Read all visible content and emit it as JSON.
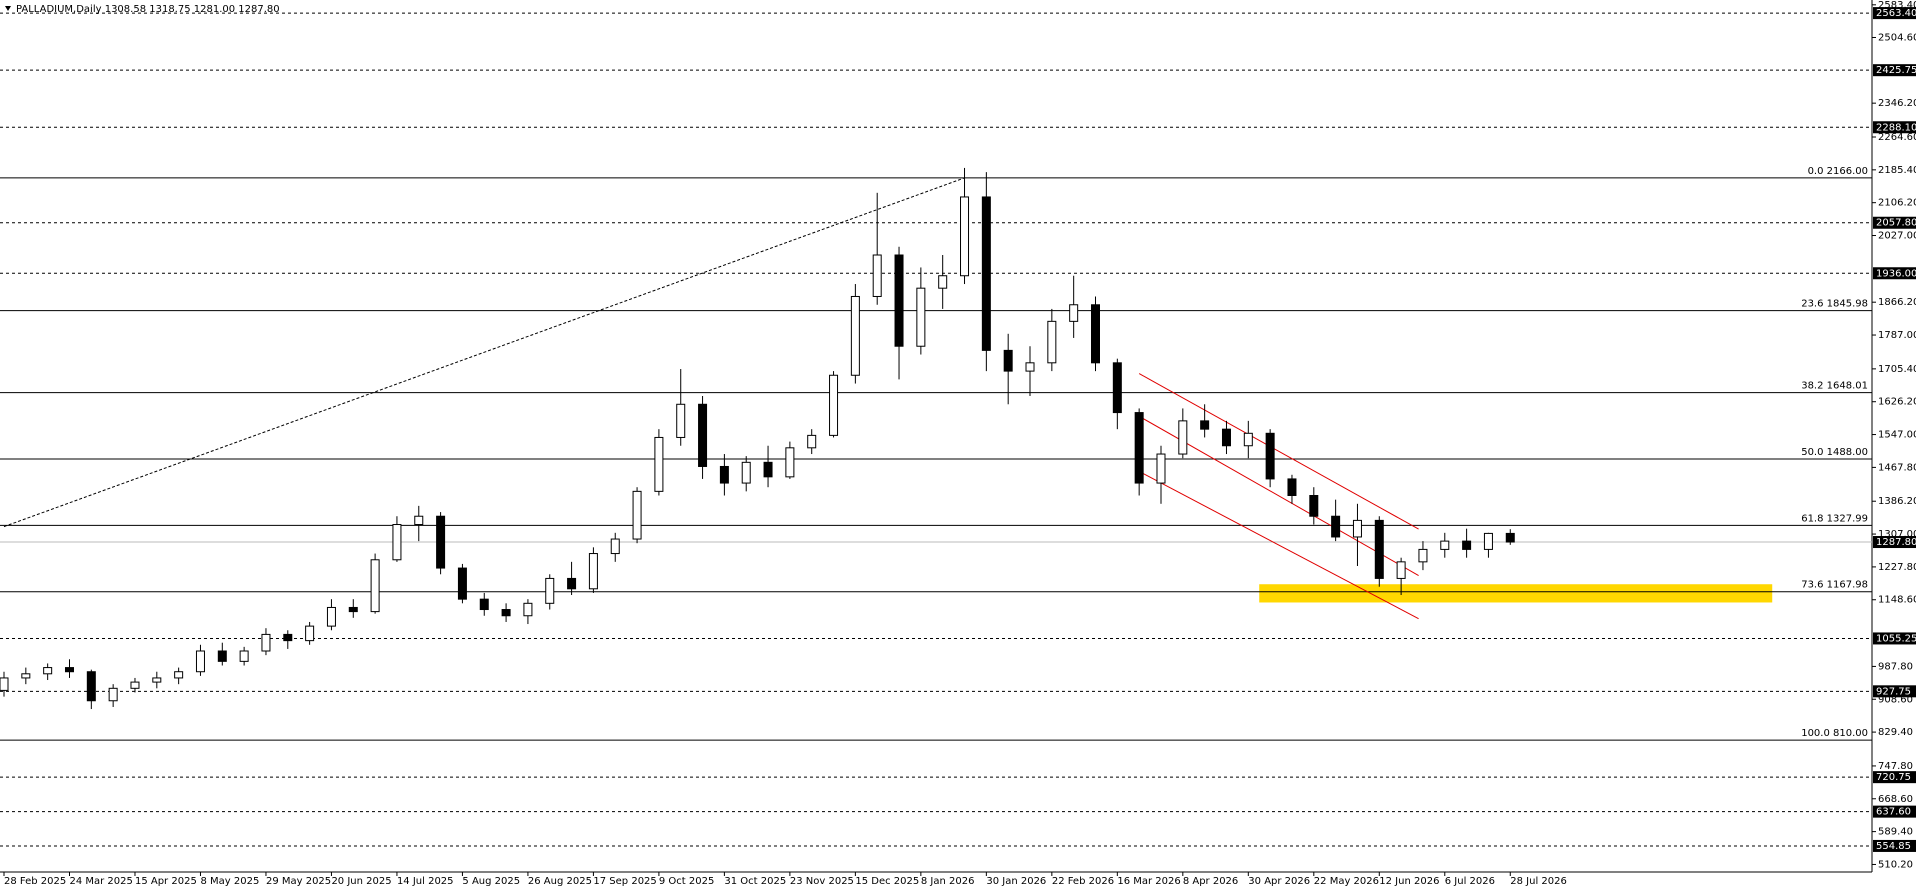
{
  "chart_data": {
    "type": "candlestick",
    "title": "PALLADIUM,Daily  1308.58 1318.75 1281.00 1287.80",
    "categories": [
      "28 Feb 2025",
      null,
      null,
      "24 Mar 2025",
      null,
      null,
      "15 Apr 2025",
      null,
      null,
      "8 May 2025",
      null,
      null,
      "29 May 2025",
      null,
      null,
      "20 Jun 2025",
      null,
      null,
      "14 Jul 2025",
      null,
      null,
      "5 Aug 2025",
      null,
      null,
      "26 Aug 2025",
      null,
      null,
      "17 Sep 2025",
      null,
      null,
      "9 Oct 2025",
      null,
      null,
      "31 Oct 2025",
      null,
      null,
      "23 Nov 2025",
      null,
      null,
      "15 Dec 2025",
      null,
      null,
      "8 Jan 2026",
      null,
      null,
      "30 Jan 2026",
      null,
      null,
      "22 Feb 2026",
      null,
      null,
      "16 Mar 2026",
      null,
      null,
      "8 Apr 2026",
      null,
      null,
      "30 Apr 2026",
      null,
      null,
      "22 May 2026",
      null,
      null,
      "12 Jun 2026",
      null,
      null,
      "6 Jul 2026",
      null,
      null,
      "28 Jul 2026"
    ],
    "ohlc": [
      [
        930,
        975,
        915,
        960
      ],
      [
        960,
        985,
        945,
        970
      ],
      [
        970,
        995,
        955,
        985
      ],
      [
        985,
        1005,
        960,
        975
      ],
      [
        975,
        980,
        885,
        905
      ],
      [
        905,
        945,
        890,
        935
      ],
      [
        935,
        960,
        925,
        950
      ],
      [
        950,
        975,
        935,
        960
      ],
      [
        960,
        985,
        945,
        975
      ],
      [
        975,
        1040,
        965,
        1025
      ],
      [
        1025,
        1045,
        990,
        1000
      ],
      [
        1000,
        1035,
        990,
        1025
      ],
      [
        1025,
        1080,
        1015,
        1065
      ],
      [
        1065,
        1075,
        1030,
        1050
      ],
      [
        1050,
        1095,
        1040,
        1085
      ],
      [
        1085,
        1150,
        1075,
        1130
      ],
      [
        1130,
        1150,
        1105,
        1120
      ],
      [
        1120,
        1260,
        1115,
        1245
      ],
      [
        1245,
        1350,
        1240,
        1330
      ],
      [
        1330,
        1375,
        1290,
        1350
      ],
      [
        1350,
        1360,
        1210,
        1225
      ],
      [
        1225,
        1235,
        1140,
        1150
      ],
      [
        1150,
        1165,
        1110,
        1125
      ],
      [
        1125,
        1140,
        1095,
        1110
      ],
      [
        1110,
        1150,
        1090,
        1140
      ],
      [
        1140,
        1210,
        1125,
        1200
      ],
      [
        1200,
        1240,
        1160,
        1175
      ],
      [
        1175,
        1275,
        1165,
        1260
      ],
      [
        1260,
        1310,
        1240,
        1295
      ],
      [
        1295,
        1420,
        1285,
        1410
      ],
      [
        1410,
        1560,
        1400,
        1540
      ],
      [
        1540,
        1705,
        1520,
        1620
      ],
      [
        1620,
        1640,
        1440,
        1470
      ],
      [
        1470,
        1500,
        1400,
        1430
      ],
      [
        1430,
        1495,
        1410,
        1480
      ],
      [
        1480,
        1520,
        1420,
        1445
      ],
      [
        1445,
        1530,
        1440,
        1515
      ],
      [
        1515,
        1560,
        1500,
        1545
      ],
      [
        1545,
        1700,
        1540,
        1690
      ],
      [
        1690,
        1910,
        1670,
        1880
      ],
      [
        1880,
        2130,
        1860,
        1980
      ],
      [
        1980,
        2000,
        1680,
        1760
      ],
      [
        1760,
        1950,
        1740,
        1900
      ],
      [
        1900,
        1980,
        1850,
        1930
      ],
      [
        1930,
        2190,
        1910,
        2120
      ],
      [
        2120,
        2180,
        1700,
        1750
      ],
      [
        1750,
        1790,
        1620,
        1700
      ],
      [
        1700,
        1760,
        1640,
        1720
      ],
      [
        1720,
        1850,
        1700,
        1820
      ],
      [
        1820,
        1930,
        1780,
        1860
      ],
      [
        1860,
        1880,
        1700,
        1720
      ],
      [
        1720,
        1730,
        1560,
        1600
      ],
      [
        1600,
        1610,
        1400,
        1430
      ],
      [
        1430,
        1520,
        1380,
        1500
      ],
      [
        1500,
        1610,
        1490,
        1580
      ],
      [
        1580,
        1620,
        1540,
        1560
      ],
      [
        1560,
        1580,
        1500,
        1520
      ],
      [
        1520,
        1580,
        1490,
        1550
      ],
      [
        1550,
        1560,
        1420,
        1440
      ],
      [
        1440,
        1450,
        1380,
        1400
      ],
      [
        1400,
        1420,
        1330,
        1350
      ],
      [
        1350,
        1390,
        1290,
        1300
      ],
      [
        1300,
        1380,
        1230,
        1340
      ],
      [
        1340,
        1350,
        1180,
        1200
      ],
      [
        1200,
        1250,
        1160,
        1240
      ],
      [
        1240,
        1290,
        1220,
        1270
      ],
      [
        1270,
        1310,
        1250,
        1290
      ],
      [
        1290,
        1320,
        1250,
        1270
      ],
      [
        1270,
        1310,
        1250,
        1308.58
      ],
      [
        1308.58,
        1318.75,
        1281,
        1287.8
      ]
    ],
    "up_color": "#ffffff",
    "down_color": "#000000",
    "outline_color": "#000000",
    "ylim": [
      492,
      2595
    ],
    "yticks": [
      {
        "value": 2583.4,
        "label": "2583.40"
      },
      {
        "value": 2504.6,
        "label": "2504.60"
      },
      {
        "value": 2346.2,
        "label": "2346.20"
      },
      {
        "value": 2264.6,
        "label": "2264.60"
      },
      {
        "value": 2185.4,
        "label": "2185.40"
      },
      {
        "value": 2106.2,
        "label": "2106.20"
      },
      {
        "value": 2027,
        "label": "2027.00"
      },
      {
        "value": 1866.2,
        "label": "1866.20"
      },
      {
        "value": 1787,
        "label": "1787.00"
      },
      {
        "value": 1705.4,
        "label": "1705.40"
      },
      {
        "value": 1626.2,
        "label": "1626.20"
      },
      {
        "value": 1547,
        "label": "1547.00"
      },
      {
        "value": 1467.8,
        "label": "1467.80"
      },
      {
        "value": 1386.2,
        "label": "1386.20"
      },
      {
        "value": 1307,
        "label": "1307.00"
      },
      {
        "value": 1227.8,
        "label": "1227.80"
      },
      {
        "value": 1148.6,
        "label": "1148.60"
      },
      {
        "value": 987.8,
        "label": "987.80"
      },
      {
        "value": 908.6,
        "label": "908.60"
      },
      {
        "value": 829.4,
        "label": "829.40"
      },
      {
        "value": 747.8,
        "label": "747.80"
      },
      {
        "value": 668.6,
        "label": "668.60"
      },
      {
        "value": 589.4,
        "label": "589.40"
      },
      {
        "value": 510.2,
        "label": "510.20"
      }
    ],
    "levels": [
      {
        "value": 2563.4,
        "label": "2563.40"
      },
      {
        "value": 2425.75,
        "label": "2425.75"
      },
      {
        "value": 2288.1,
        "label": "2288.10"
      },
      {
        "value": 2057.8,
        "label": "2057.80"
      },
      {
        "value": 1936,
        "label": "1936.00"
      },
      {
        "value": 1055.25,
        "label": "1055.25"
      },
      {
        "value": 927.75,
        "label": "927.75"
      },
      {
        "value": 720.75,
        "label": "720.75"
      },
      {
        "value": 637.6,
        "label": "637.60"
      },
      {
        "value": 554.85,
        "label": "554.85"
      }
    ],
    "last_price": {
      "value": 1287.8,
      "label": "1287.80"
    },
    "fib_levels": [
      {
        "value": 2166,
        "label": "0.0 2166.00"
      },
      {
        "value": 1845.98,
        "label": "23.6 1845.98"
      },
      {
        "value": 1648.01,
        "label": "38.2 1648.01"
      },
      {
        "value": 1488,
        "label": "50.0 1488.00"
      },
      {
        "value": 1327.99,
        "label": "61.8 1327.99"
      },
      {
        "value": 1167.98,
        "label": "73.6 1167.98"
      },
      {
        "value": 810,
        "label": "100.0 810.00"
      }
    ],
    "trendlines": [
      {
        "color": "#000000",
        "x": [
          0,
          44
        ],
        "y": [
          1325,
          2166
        ]
      },
      {
        "color": "#e00000",
        "x": [
          52,
          64.8
        ],
        "y": [
          1694,
          1319
        ]
      },
      {
        "color": "#e00000",
        "x": [
          52,
          64.8
        ],
        "y": [
          1591,
          1207
        ]
      },
      {
        "color": "#e00000",
        "x": [
          52,
          64.8
        ],
        "y": [
          1458,
          1103
        ]
      }
    ],
    "zone": {
      "color": "#ffd700",
      "x": [
        57.5,
        81
      ],
      "y": [
        1142,
        1186
      ]
    }
  }
}
